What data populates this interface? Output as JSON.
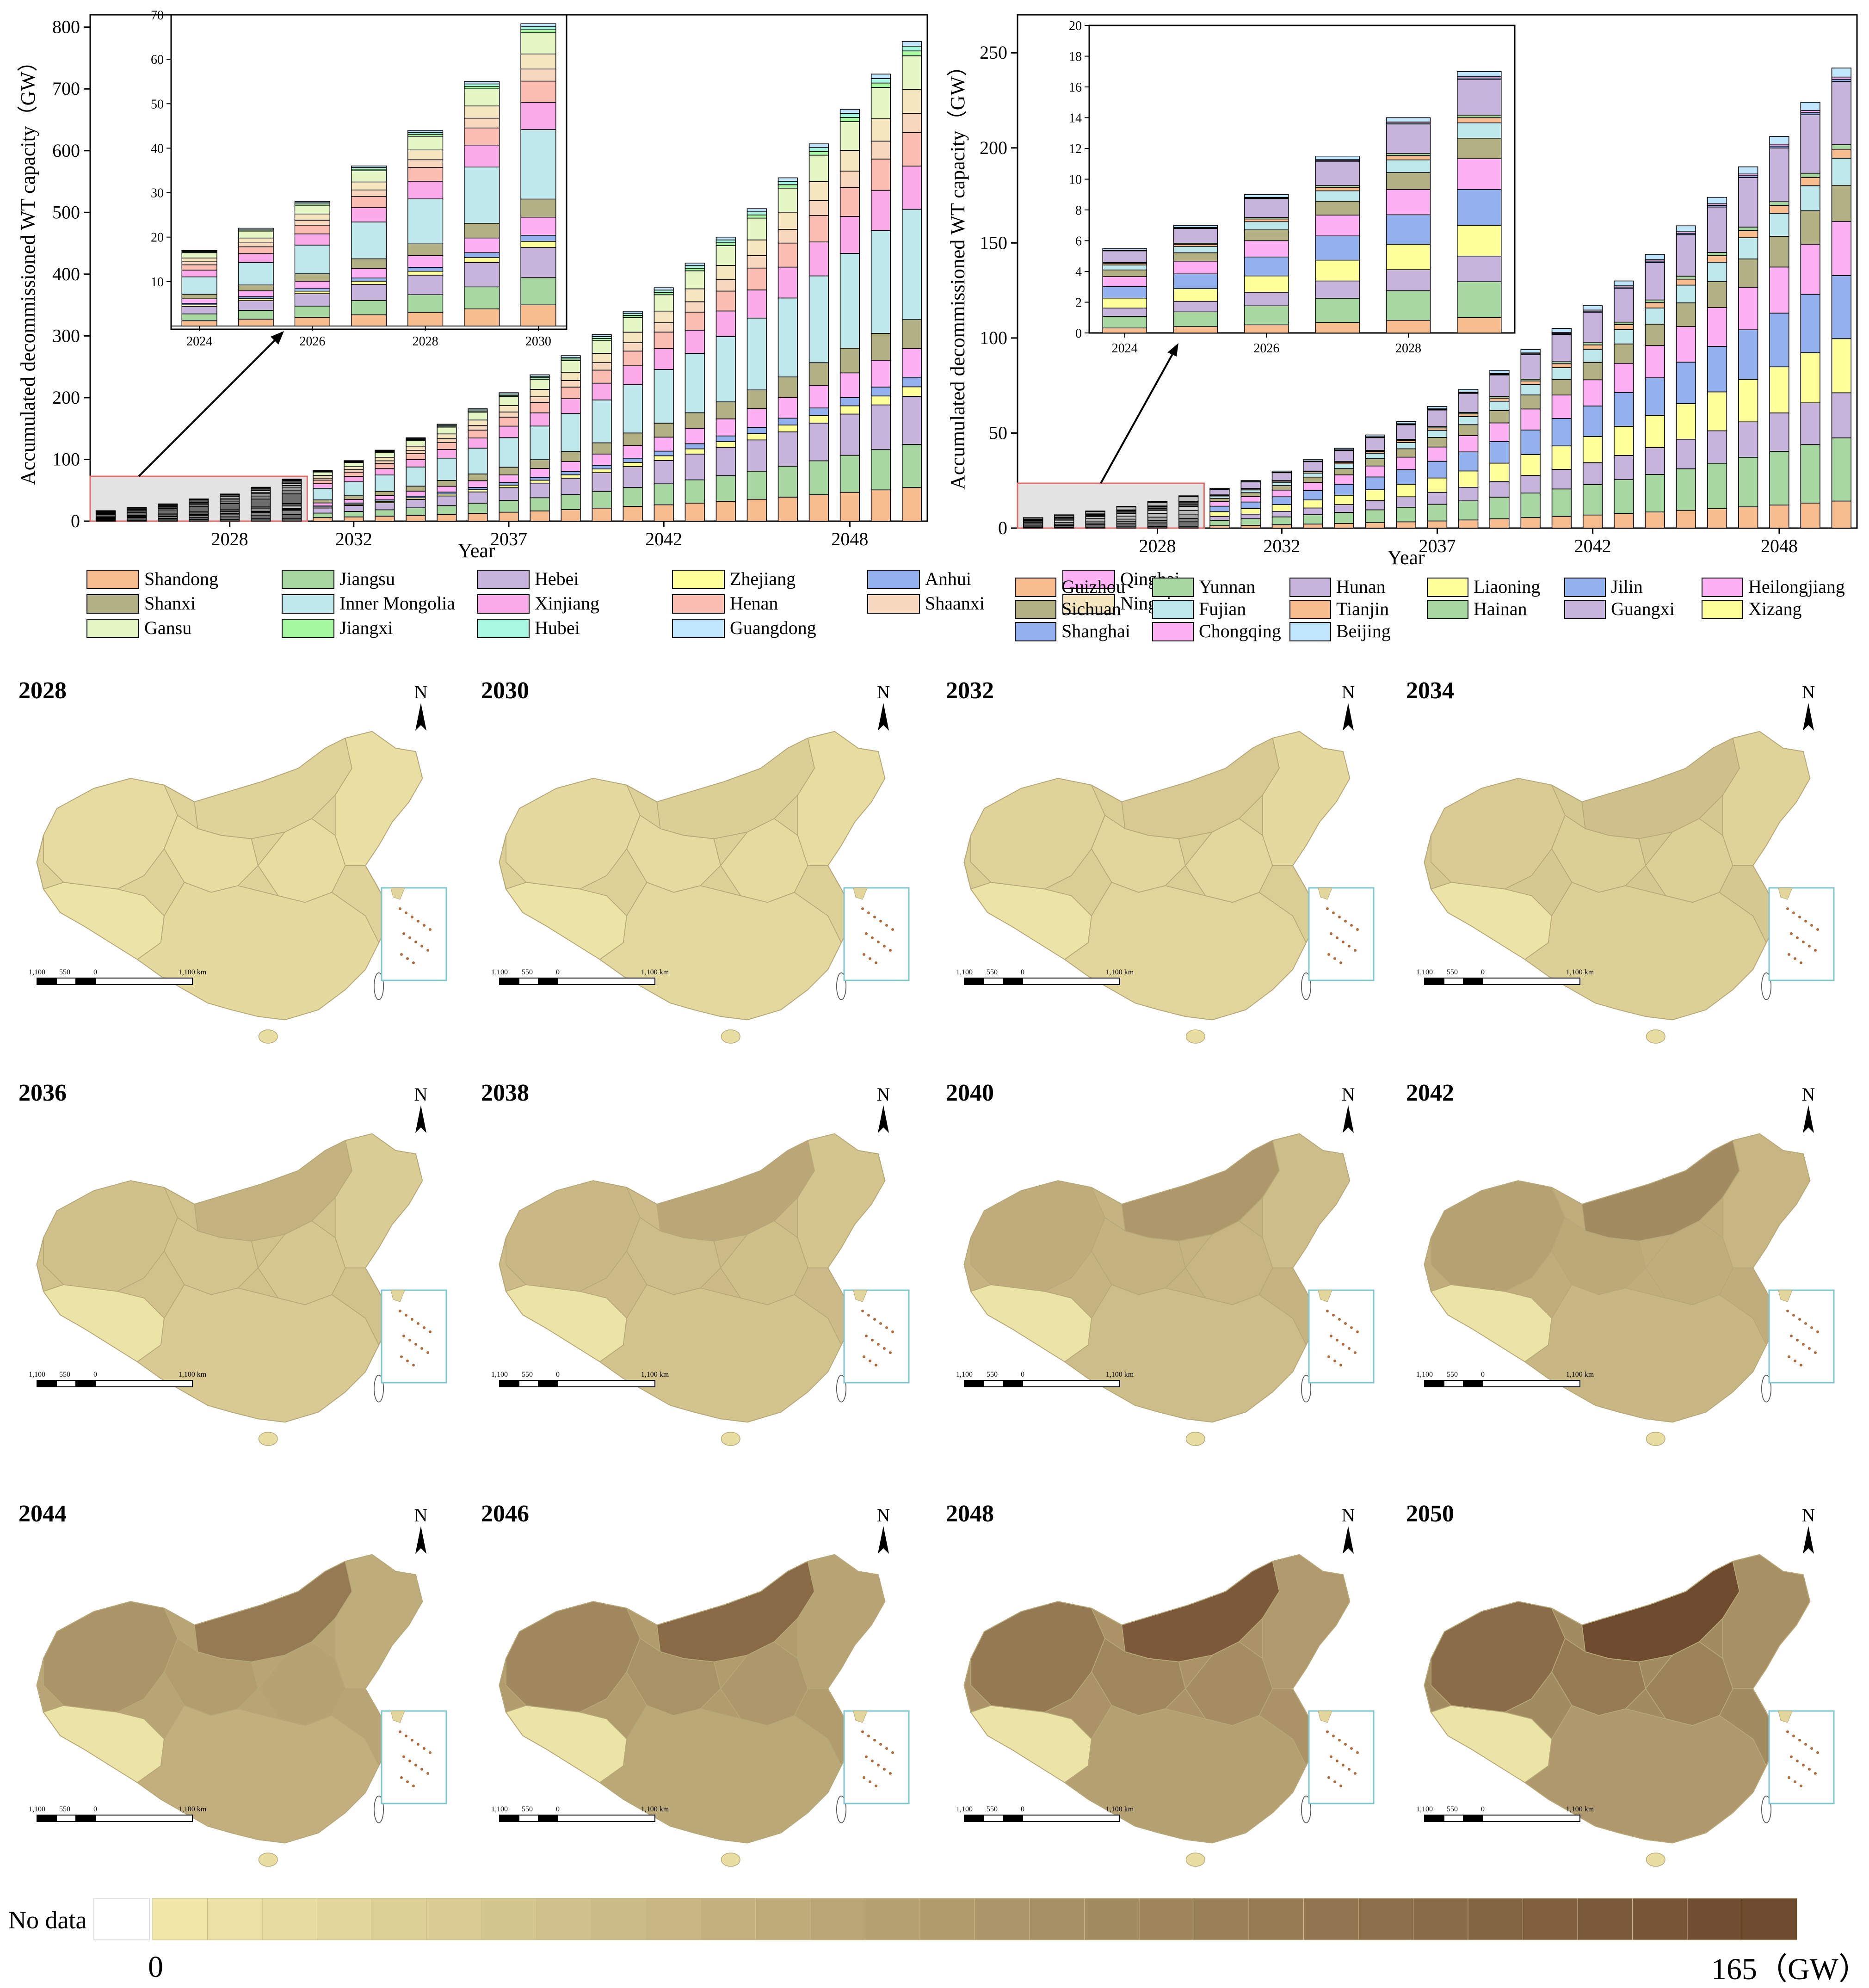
{
  "colors": {
    "leftProvinces": [
      "#f7bd8f",
      "#a7d8a2",
      "#c7b4dc",
      "#ffff99",
      "#93b1ee",
      "#fdb0f3",
      "#b3b084",
      "#bfe8ec",
      "#fbaae9",
      "#fbbcb2",
      "#f6d7bd",
      "#f5e6c0",
      "#e4f7c4",
      "#a5f7a0",
      "#a8f7e1",
      "#bfe6fc"
    ],
    "rightProvinces": [
      "#f7bd8f",
      "#a7d8a2",
      "#c7b4dc",
      "#ffff99",
      "#93b1ee",
      "#fdb0f3",
      "#b3b084",
      "#bfe8ec",
      "#f7bd8f",
      "#a7d8a2",
      "#c7b4dc",
      "#ffff99",
      "#93b1ee",
      "#fdb0f3",
      "#bfe6fc"
    ],
    "map_low": "#efe6a8",
    "map_high": "#6e4a2e"
  },
  "chart_data": [
    {
      "type": "bar",
      "stacked": true,
      "title": "",
      "xlabel": "Year",
      "ylabel": "Accumulated decommissioned WT capacity（GW）",
      "ylim": [
        0,
        820
      ],
      "yticks": [
        "0",
        "100",
        "200",
        "300",
        "400",
        "500",
        "600",
        "700",
        "800"
      ],
      "xticks": [
        "2028",
        "2032",
        "2037",
        "2042",
        "2048"
      ],
      "x": [
        2024,
        2025,
        2026,
        2027,
        2028,
        2029,
        2030,
        2031,
        2032,
        2033,
        2034,
        2035,
        2036,
        2037,
        2038,
        2039,
        2040,
        2041,
        2042,
        2043,
        2044,
        2045,
        2046,
        2047,
        2048,
        2049,
        2050
      ],
      "totals": [
        17,
        22,
        28,
        36,
        44,
        55,
        68,
        82,
        98,
        115,
        135,
        157,
        182,
        208,
        237,
        268,
        302,
        340,
        378,
        418,
        460,
        506,
        556,
        611,
        667,
        724,
        777
      ],
      "series": [
        "Shandong",
        "Jiangsu",
        "Hebei",
        "Zhejiang",
        "Anhui",
        "Qinghai",
        "Shanxi",
        "Inner Mongolia",
        "Xinjiang",
        "Henan",
        "Shaanxi",
        "Ningxia",
        "Gansu",
        "Jiangxi",
        "Hubei",
        "Guangdong"
      ],
      "shares": [
        0.07,
        0.09,
        0.1,
        0.02,
        0.02,
        0.06,
        0.06,
        0.23,
        0.09,
        0.07,
        0.04,
        0.05,
        0.07,
        0.01,
        0.01,
        0.01
      ],
      "highlight_range": [
        2024,
        2030
      ],
      "inset": {
        "x": [
          2024,
          2025,
          2026,
          2027,
          2028,
          2029,
          2030
        ],
        "xticks": [
          "2024",
          "2026",
          "2028",
          "2030"
        ],
        "yticks": [
          "10",
          "20",
          "30",
          "40",
          "50",
          "60",
          "70"
        ],
        "ylim": [
          0,
          70
        ]
      }
    },
    {
      "type": "bar",
      "stacked": true,
      "title": "",
      "xlabel": "Year",
      "ylabel": "Accumulated decommissioned WT capacity（GW）",
      "ylim": [
        0,
        270
      ],
      "yticks": [
        "0",
        "50",
        "100",
        "150",
        "200",
        "250"
      ],
      "xticks": [
        "2028",
        "2032",
        "2037",
        "2042",
        "2048"
      ],
      "x": [
        2024,
        2025,
        2026,
        2027,
        2028,
        2029,
        2030,
        2031,
        2032,
        2033,
        2034,
        2035,
        2036,
        2037,
        2038,
        2039,
        2040,
        2041,
        2042,
        2043,
        2044,
        2045,
        2046,
        2047,
        2048,
        2049,
        2050
      ],
      "totals": [
        5.5,
        7.0,
        9.0,
        11.5,
        14.0,
        17.0,
        21,
        25,
        30,
        36,
        42,
        49,
        56,
        64,
        73,
        83,
        94,
        105,
        117,
        130,
        144,
        159,
        174,
        190,
        206,
        224,
        242
      ],
      "series": [
        "Guizhou",
        "Yunnan",
        "Hunan",
        "Liaoning",
        "Jilin",
        "Heilongjiang",
        "Sichuan",
        "Fujian",
        "Tianjin",
        "Hainan",
        "Guangxi",
        "Xizang",
        "Shanghai",
        "Chongqing",
        "Beijing"
      ],
      "shares": [
        0.06,
        0.14,
        0.1,
        0.12,
        0.14,
        0.12,
        0.08,
        0.06,
        0.02,
        0.01,
        0.14,
        0.0,
        0.005,
        0.005,
        0.02
      ],
      "highlight_range": [
        2024,
        2029
      ],
      "inset": {
        "x": [
          2024,
          2025,
          2026,
          2027,
          2028,
          2029
        ],
        "xticks": [
          "2024",
          "2026",
          "2028"
        ],
        "yticks": [
          "0",
          "2",
          "4",
          "6",
          "8",
          "10",
          "12",
          "14",
          "16",
          "18",
          "20"
        ],
        "ylim": [
          0,
          20
        ]
      }
    }
  ],
  "legend_left": [
    "Shandong",
    "Jiangsu",
    "Hebei",
    "Zhejiang",
    "Anhui",
    "Qinghai",
    "Shanxi",
    "Inner Mongolia",
    "Xinjiang",
    "Henan",
    "Shaanxi",
    "Ningxia",
    "Gansu",
    "Jiangxi",
    "Hubei",
    "Guangdong"
  ],
  "legend_right": [
    "Guizhou",
    "Yunnan",
    "Hunan",
    "Liaoning",
    "Jilin",
    "Heilongjiang",
    "Sichuan",
    "Fujian",
    "Tianjin",
    "Hainan",
    "Guangxi",
    "Xizang",
    "Shanghai",
    "Chongqing",
    "Beijing"
  ],
  "maps": {
    "years": [
      "2028",
      "2030",
      "2032",
      "2034",
      "2036",
      "2038",
      "2040",
      "2042",
      "2044",
      "2046",
      "2048",
      "2050"
    ],
    "intensity": [
      0.08,
      0.1,
      0.14,
      0.2,
      0.28,
      0.35,
      0.44,
      0.52,
      0.62,
      0.72,
      0.82,
      0.92
    ],
    "north_label": "N",
    "scale_labels": [
      "1,100",
      "550",
      "0",
      "1,100 km"
    ]
  },
  "colorbar": {
    "no_data_label": "No data",
    "min_label": "0",
    "max_label": "165（GW）",
    "steps": 30
  }
}
